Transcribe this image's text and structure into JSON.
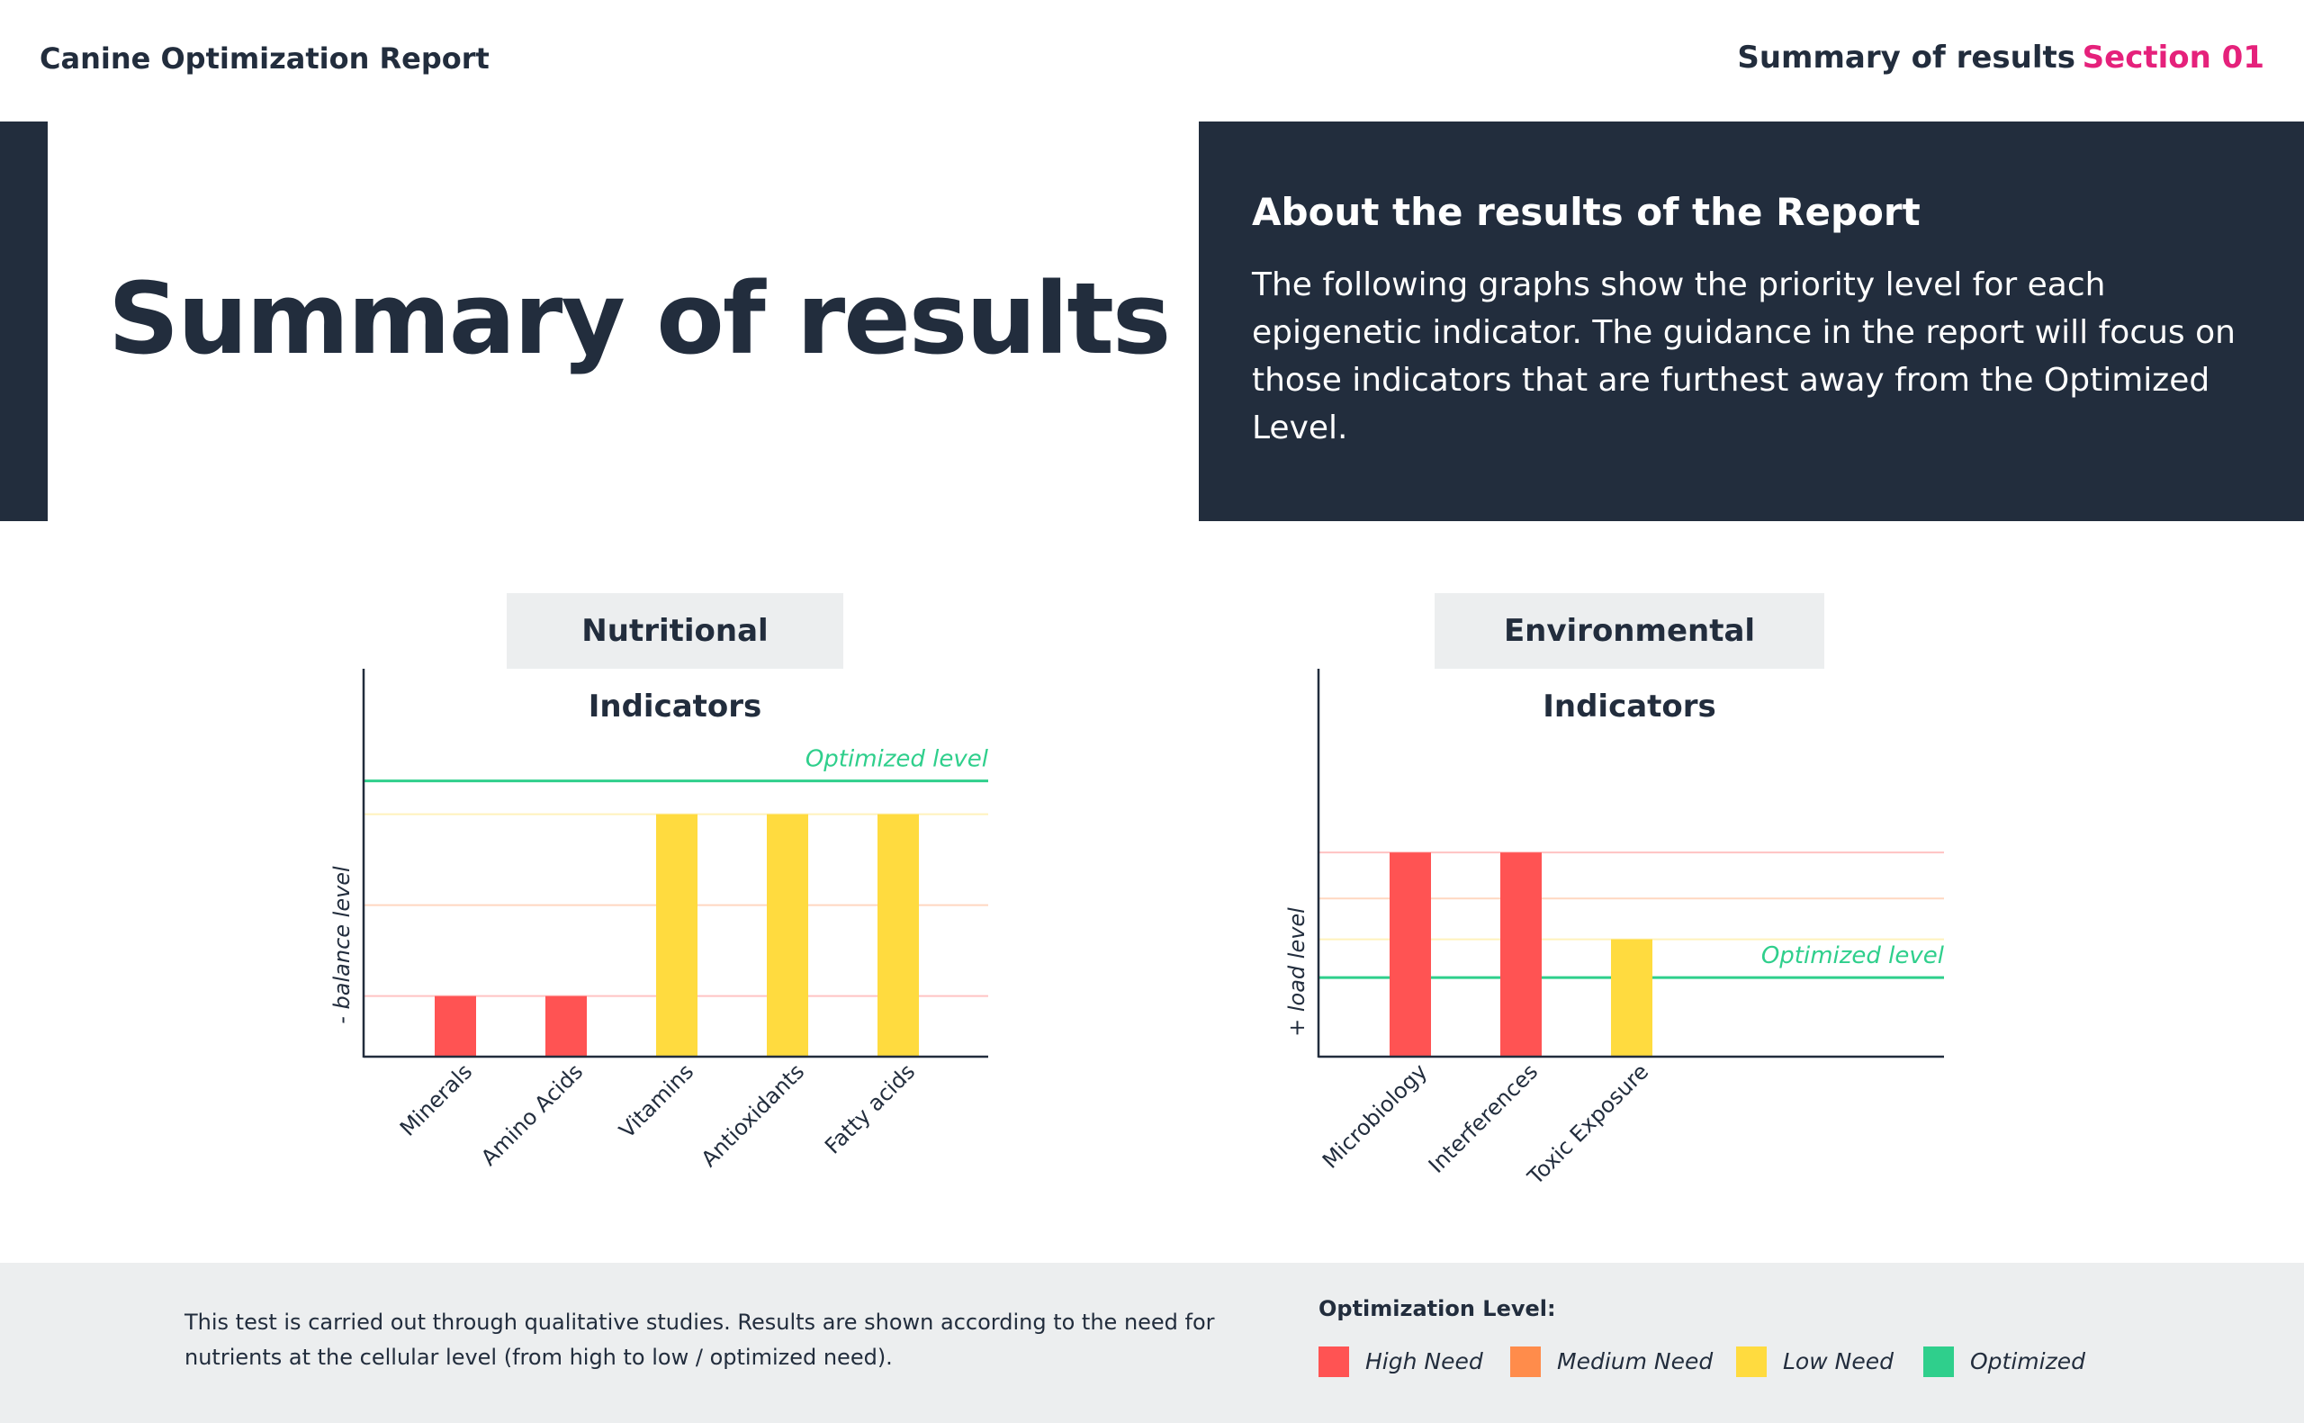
{
  "header": {
    "app_title": "Canine Optimization Report",
    "nav_summary": "Summary of results",
    "nav_section": "Section 01"
  },
  "hero": {
    "title": "Summary of results"
  },
  "about": {
    "title": "About the results of the Report",
    "body": "The following graphs show the priority level for each epigenetic indicator. The guidance in the report will focus on those indicators that are furthest away from the Optimized Level."
  },
  "colors": {
    "navy": "#222d3d",
    "accent_pink": "#e5217b",
    "high": "#ff5353",
    "medium": "#ff8c4b",
    "low": "#ffdb3f",
    "optimized": "#2fcf8c"
  },
  "chart_data": [
    {
      "type": "bar",
      "title": "Nutritional Indicators",
      "ylabel": "- balance level",
      "xlabel": "",
      "categories": [
        "Minerals",
        "Amino Acids",
        "Vitamins",
        "Antioxidants",
        "Fatty acids"
      ],
      "values": [
        1,
        1,
        4,
        4,
        4
      ],
      "levels": [
        "High Need",
        "High Need",
        "Low Need",
        "Low Need",
        "Low Need"
      ],
      "ylim": [
        0,
        6.4
      ],
      "reference_lines": [
        {
          "value": 1,
          "level": "High Need"
        },
        {
          "value": 2.5,
          "level": "Medium Need"
        },
        {
          "value": 4,
          "level": "Low Need"
        },
        {
          "value": 4.55,
          "level": "Optimized",
          "label": "Optimized level"
        }
      ]
    },
    {
      "type": "bar",
      "title": "Environmental Indicators",
      "ylabel": "+ load level",
      "xlabel": "",
      "categories": [
        "Microbiology",
        "Interferences",
        "Toxic Exposure"
      ],
      "values": [
        4,
        4,
        2.3
      ],
      "levels": [
        "High Need",
        "High Need",
        "Low Need"
      ],
      "ylim": [
        0,
        7.6
      ],
      "reference_lines": [
        {
          "value": 4,
          "level": "High Need"
        },
        {
          "value": 3.1,
          "level": "Medium Need"
        },
        {
          "value": 2.3,
          "level": "Low Need"
        },
        {
          "value": 1.55,
          "level": "Optimized",
          "label": "Optimized level"
        }
      ]
    }
  ],
  "footer": {
    "note": "This test is carried out through qualitative studies. Results are shown according to the need for nutrients at the cellular level (from high to low / optimized need).",
    "legend_title": "Optimization Level:",
    "legend": [
      {
        "label": "High Need",
        "color": "#ff5353"
      },
      {
        "label": "Medium Need",
        "color": "#ff8c4b"
      },
      {
        "label": "Low Need",
        "color": "#ffdb3f"
      },
      {
        "label": "Optimized",
        "color": "#2fcf8c"
      }
    ]
  }
}
